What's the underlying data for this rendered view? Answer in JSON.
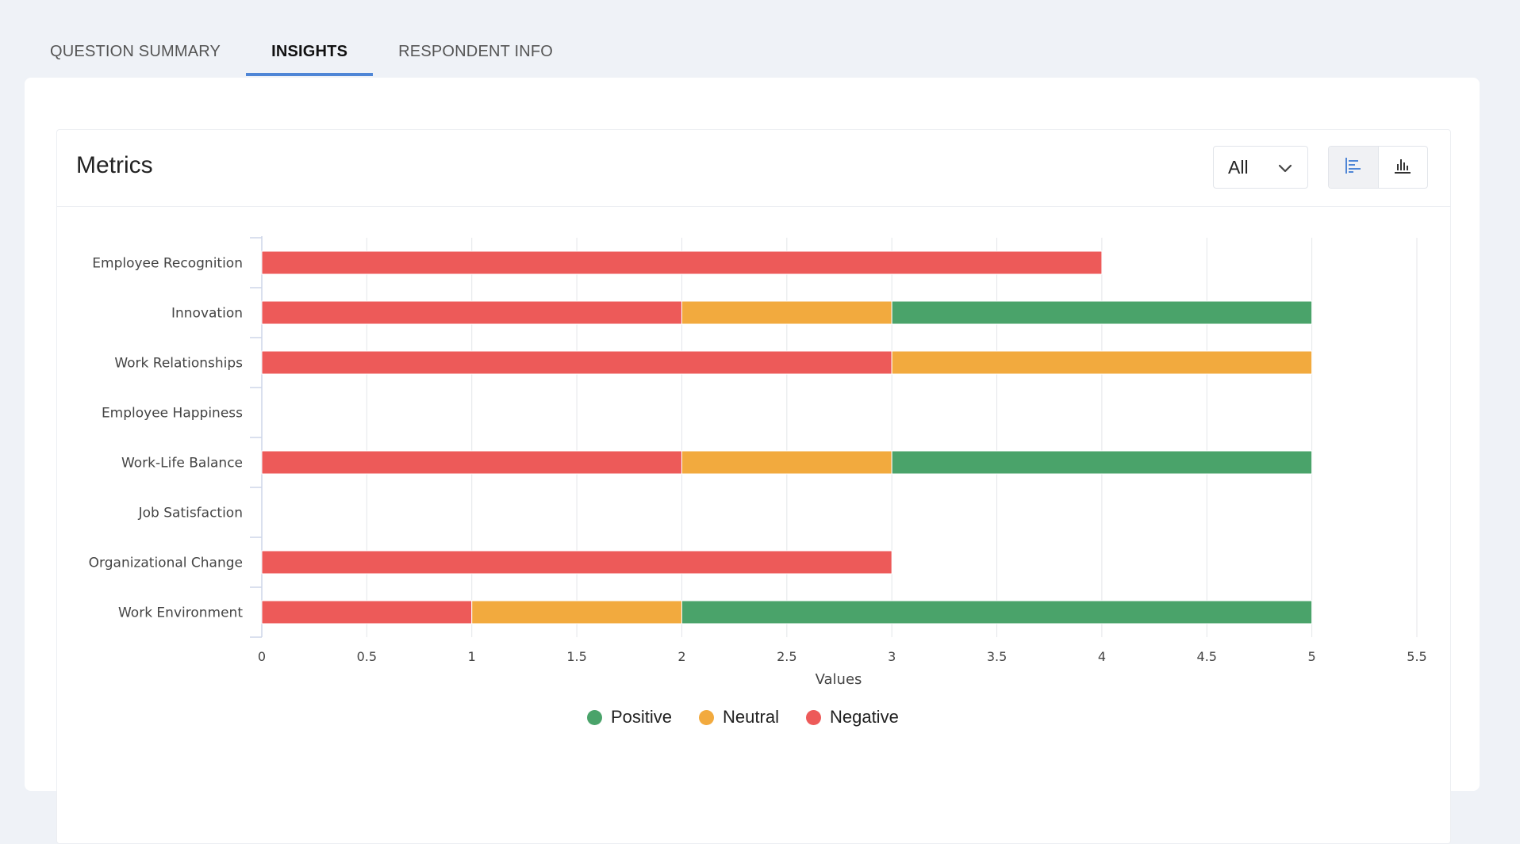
{
  "tabs": [
    {
      "label": "QUESTION SUMMARY",
      "active": false
    },
    {
      "label": "INSIGHTS",
      "active": true
    },
    {
      "label": "RESPONDENT INFO",
      "active": false
    }
  ],
  "panel": {
    "title": "Metrics",
    "filter": {
      "value": "All"
    },
    "view_toggle": {
      "options": [
        "horizontal-bar-icon",
        "vertical-bar-icon"
      ],
      "active": "horizontal-bar-icon"
    }
  },
  "colors": {
    "positive": "#4aa36a",
    "neutral": "#f2aa3e",
    "negative": "#ed5a59",
    "accent": "#4f86d6"
  },
  "chart_data": {
    "type": "bar",
    "orientation": "horizontal",
    "stacked": true,
    "categories": [
      "Employee Recognition",
      "Innovation",
      "Work Relationships",
      "Employee Happiness",
      "Work-Life Balance",
      "Job Satisfaction",
      "Organizational Change",
      "Work Environment"
    ],
    "series": [
      {
        "name": "Negative",
        "color": "#ed5a59",
        "values": [
          4,
          2,
          3,
          0,
          2,
          0,
          3,
          1
        ]
      },
      {
        "name": "Neutral",
        "color": "#f2aa3e",
        "values": [
          0,
          1,
          2,
          0,
          1,
          0,
          0,
          1
        ]
      },
      {
        "name": "Positive",
        "color": "#4aa36a",
        "values": [
          0,
          2,
          0,
          0,
          2,
          0,
          0,
          3
        ]
      }
    ],
    "xlabel": "Values",
    "xlim": [
      0,
      5.5
    ],
    "xticks": [
      "0",
      "0.5",
      "1",
      "1.5",
      "2",
      "2.5",
      "3",
      "3.5",
      "4",
      "4.5",
      "5",
      "5.5"
    ],
    "grid": true,
    "legend": {
      "position": "bottom",
      "entries": [
        "Positive",
        "Neutral",
        "Negative"
      ]
    }
  }
}
